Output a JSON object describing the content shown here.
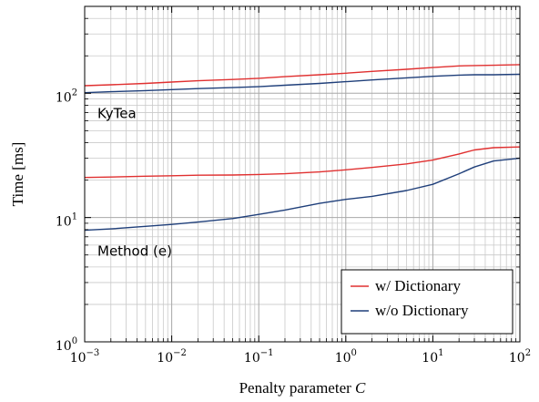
{
  "chart_data": {
    "type": "line",
    "title": "",
    "xlabel": "Penalty parameter",
    "xlabel_var": "C",
    "ylabel": "Time [ms]",
    "xscale": "log",
    "yscale": "log",
    "xlim": [
      0.001,
      100
    ],
    "ylim": [
      1,
      500
    ],
    "grid": true,
    "legend_position": "bottom-right",
    "x_ticks": [
      {
        "value": 0.001,
        "base": "10",
        "exp": "−3"
      },
      {
        "value": 0.01,
        "base": "10",
        "exp": "−2"
      },
      {
        "value": 0.1,
        "base": "10",
        "exp": "−1"
      },
      {
        "value": 1,
        "base": "10",
        "exp": "0"
      },
      {
        "value": 10,
        "base": "10",
        "exp": "1"
      },
      {
        "value": 100,
        "base": "10",
        "exp": "2"
      }
    ],
    "y_ticks": [
      {
        "value": 1,
        "base": "10",
        "exp": "0"
      },
      {
        "value": 10,
        "base": "10",
        "exp": "1"
      },
      {
        "value": 100,
        "base": "10",
        "exp": "2"
      }
    ],
    "x": [
      0.001,
      0.002,
      0.005,
      0.01,
      0.02,
      0.05,
      0.1,
      0.2,
      0.5,
      1,
      2,
      5,
      10,
      20,
      30,
      50,
      100
    ],
    "series": [
      {
        "group": "KyTea",
        "legend": "w/ Dictionary",
        "color": "#e03030",
        "values": [
          115,
          117,
          120,
          123,
          126,
          129,
          132,
          136,
          141,
          145,
          150,
          156,
          161,
          166,
          167,
          168,
          170
        ]
      },
      {
        "group": "KyTea",
        "legend": "w/o Dictionary",
        "color": "#1f3f7a",
        "values": [
          101,
          103,
          105,
          107,
          109,
          111,
          113,
          116,
          120,
          124,
          128,
          133,
          137,
          140,
          141,
          141,
          142
        ]
      },
      {
        "group": "Method (e)",
        "legend": "w/ Dictionary",
        "color": "#e03030",
        "values": [
          21,
          21.2,
          21.5,
          21.7,
          21.9,
          22.0,
          22.2,
          22.5,
          23.3,
          24.2,
          25.3,
          27.0,
          29.0,
          32.5,
          35.0,
          36.5,
          37.0
        ]
      },
      {
        "group": "Method (e)",
        "legend": "w/o Dictionary",
        "color": "#1f3f7a",
        "values": [
          7.9,
          8.1,
          8.5,
          8.8,
          9.2,
          9.8,
          10.6,
          11.5,
          13.0,
          14.0,
          14.8,
          16.5,
          18.5,
          22.5,
          25.5,
          28.5,
          30.0
        ]
      }
    ],
    "legend": [
      {
        "label": "w/ Dictionary",
        "color": "#e03030"
      },
      {
        "label": "w/o Dictionary",
        "color": "#1f3f7a"
      }
    ],
    "annotations": [
      {
        "text": "KyTea",
        "near_series": 1
      },
      {
        "text": "Method (e)",
        "near_series": 3
      }
    ]
  }
}
